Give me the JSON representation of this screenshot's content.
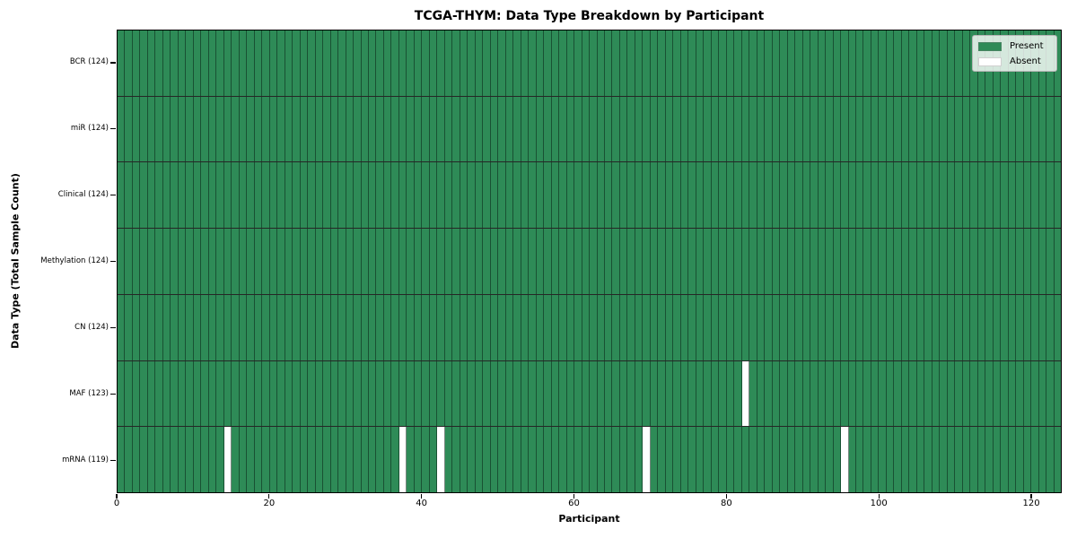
{
  "chart_data": {
    "type": "heatmap",
    "title": "TCGA-THYM: Data Type Breakdown by Participant",
    "xlabel": "Participant",
    "ylabel": "Data Type (Total Sample Count)",
    "n_participants": 124,
    "x_ticks": [
      0,
      20,
      40,
      60,
      80,
      100,
      120
    ],
    "xlim": [
      0,
      124
    ],
    "grid": "cell-borders",
    "legend_position": "upper-right",
    "colors": {
      "present": "#2e8b57",
      "absent": "#ffffff"
    },
    "legend": [
      {
        "label": "Present",
        "color": "#2e8b57"
      },
      {
        "label": "Absent",
        "color": "#ffffff"
      }
    ],
    "rows": [
      {
        "label": "BCR (124)",
        "data_type": "BCR",
        "present_count": 124,
        "absent_participants": []
      },
      {
        "label": "miR (124)",
        "data_type": "miR",
        "present_count": 124,
        "absent_participants": []
      },
      {
        "label": "Clinical (124)",
        "data_type": "Clinical",
        "present_count": 124,
        "absent_participants": []
      },
      {
        "label": "Methylation (124)",
        "data_type": "Methylation",
        "present_count": 124,
        "absent_participants": []
      },
      {
        "label": "CN (124)",
        "data_type": "CN",
        "present_count": 124,
        "absent_participants": []
      },
      {
        "label": "MAF (123)",
        "data_type": "MAF",
        "present_count": 123,
        "absent_participants": [
          82
        ]
      },
      {
        "label": "mRNA (119)",
        "data_type": "mRNA",
        "present_count": 119,
        "absent_participants": [
          14,
          37,
          42,
          69,
          95
        ]
      }
    ]
  }
}
